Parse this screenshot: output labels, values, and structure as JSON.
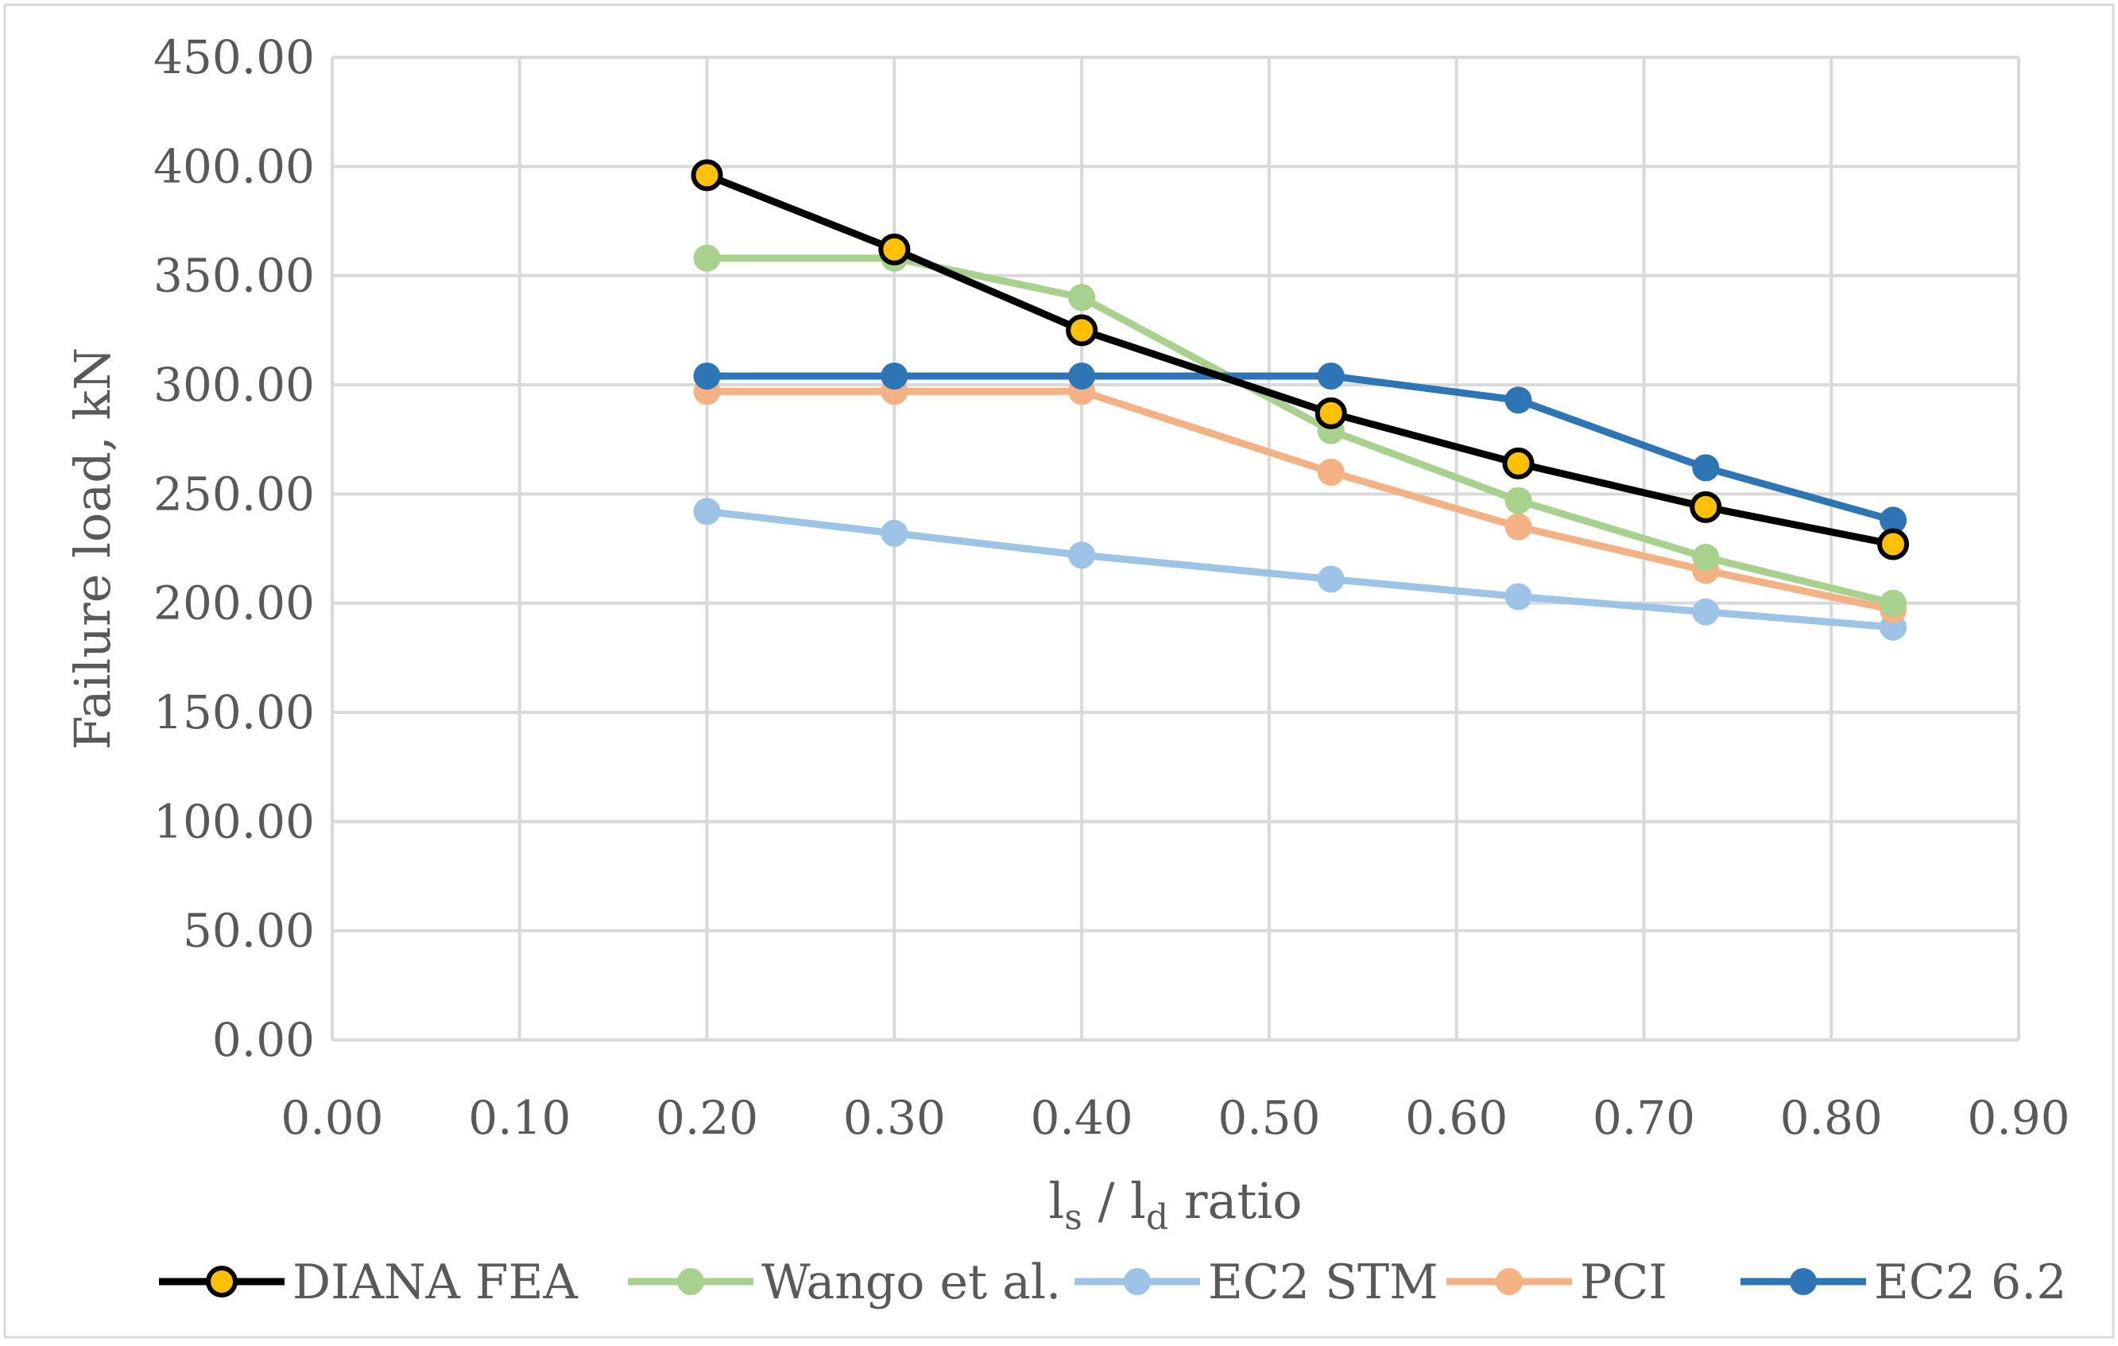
{
  "chart_data": {
    "type": "line",
    "title": "",
    "xlabel": "l_s / l_d ratio",
    "xlabel_parts": {
      "base1": "l",
      "sub1": "s",
      "sep": " / ",
      "base2": "l",
      "sub2": "d",
      "tail": " ratio"
    },
    "ylabel": "Failure load, kN",
    "xlim": [
      0,
      0.9
    ],
    "ylim": [
      0,
      450
    ],
    "x_ticks": [
      "0.00",
      "0.10",
      "0.20",
      "0.30",
      "0.40",
      "0.50",
      "0.60",
      "0.70",
      "0.80",
      "0.90"
    ],
    "y_ticks": [
      "0.00",
      "50.00",
      "100.00",
      "150.00",
      "200.00",
      "250.00",
      "300.00",
      "350.00",
      "400.00",
      "450.00"
    ],
    "grid": true,
    "legend_position": "bottom",
    "x": [
      0.2,
      0.3,
      0.4,
      0.533,
      0.633,
      0.733,
      0.833
    ],
    "series": [
      {
        "name": "EC2 STM",
        "color": "#9dc3e6",
        "marker_fill": "#9dc3e6",
        "marker_edge": "#9dc3e6",
        "values": [
          242,
          232,
          222,
          211,
          203,
          196,
          189
        ]
      },
      {
        "name": "PCI",
        "color": "#f4b183",
        "marker_fill": "#f4b183",
        "marker_edge": "#f4b183",
        "values": [
          297,
          297,
          297,
          260,
          235,
          215,
          197
        ]
      },
      {
        "name": "Wango et al.",
        "color": "#a9d18e",
        "marker_fill": "#a9d18e",
        "marker_edge": "#a9d18e",
        "values": [
          358,
          358,
          340,
          279,
          247,
          221,
          200
        ]
      },
      {
        "name": "EC2 6.2",
        "color": "#2e75b6",
        "marker_fill": "#2e75b6",
        "marker_edge": "#2e75b6",
        "values": [
          304,
          304,
          304,
          304,
          293,
          262,
          238
        ]
      },
      {
        "name": "DIANA FEA",
        "color": "#000000",
        "marker_fill": "#ffc000",
        "marker_edge": "#000000",
        "values": [
          396,
          362,
          325,
          287,
          264,
          244,
          227
        ]
      }
    ],
    "legend_order": [
      "DIANA FEA",
      "Wango et al.",
      "EC2 STM",
      "PCI",
      "EC2 6.2"
    ]
  }
}
